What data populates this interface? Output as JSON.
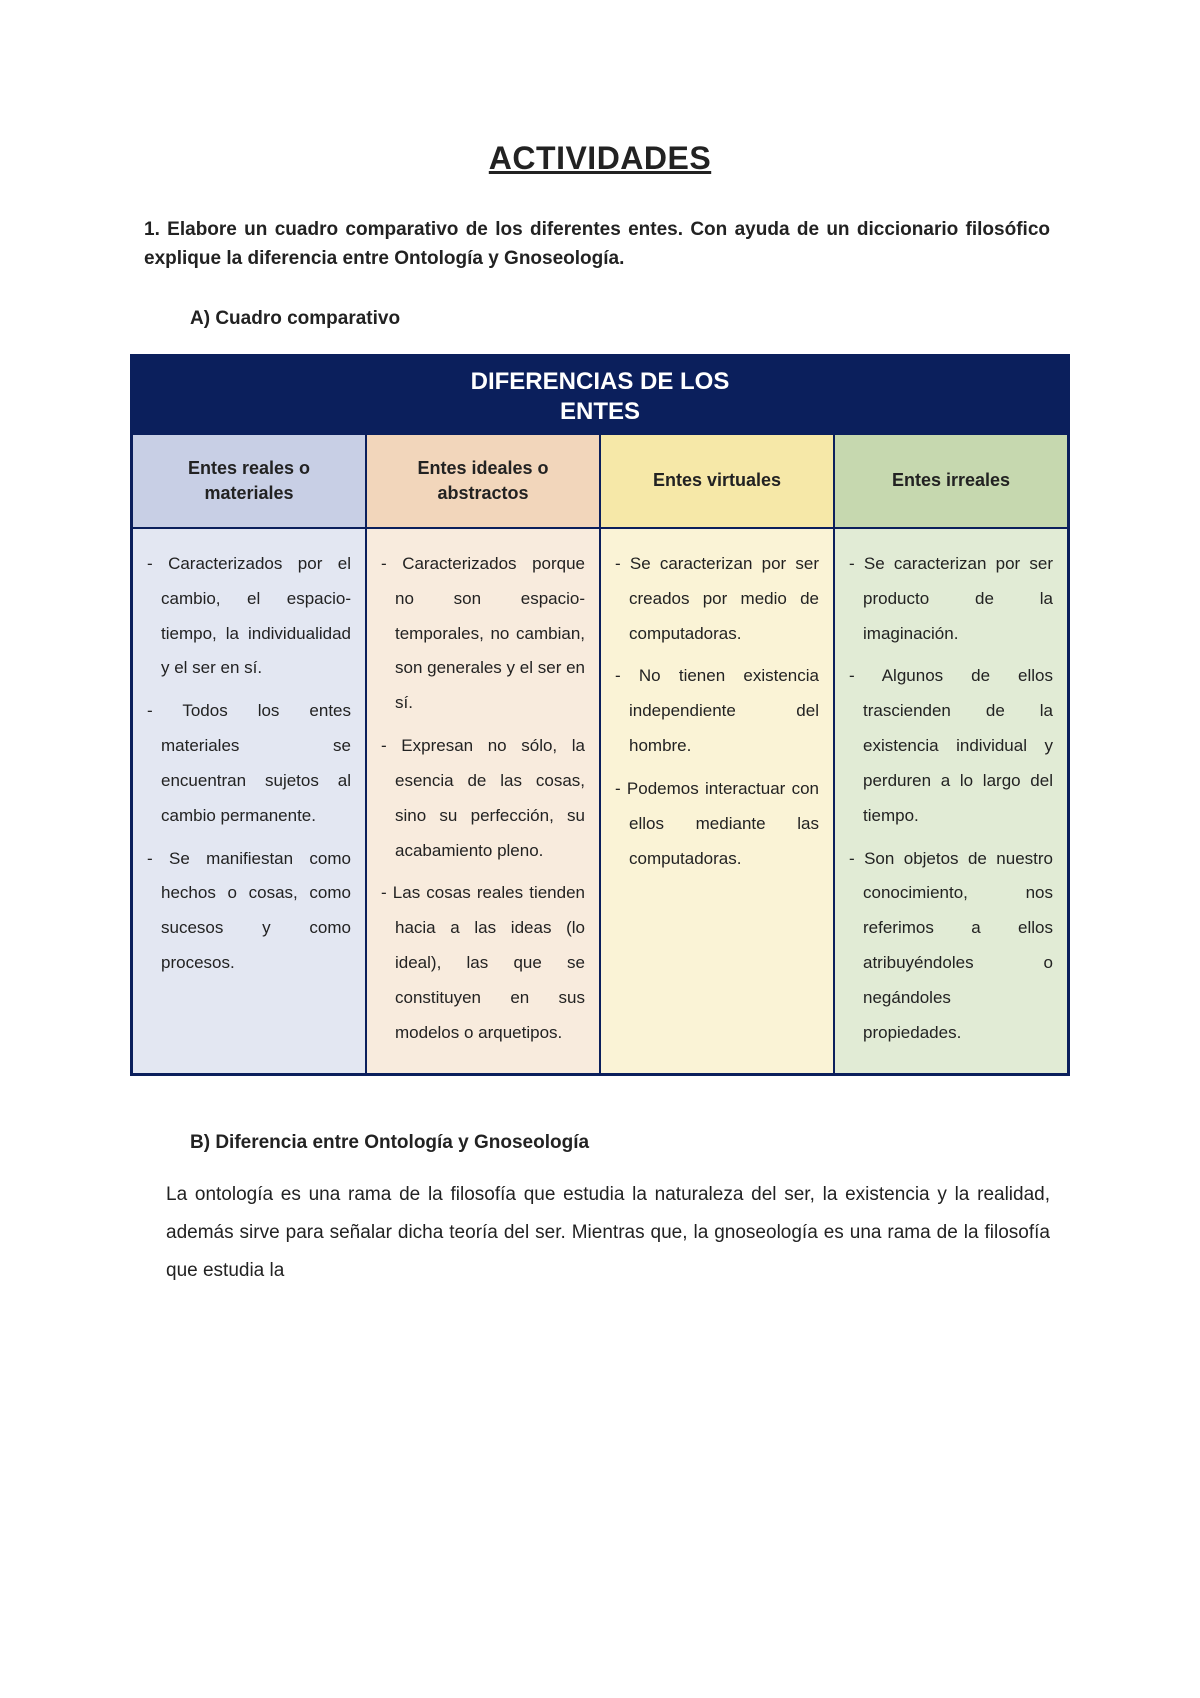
{
  "title": "ACTIVIDADES",
  "question1": "1. Elabore un cuadro comparativo de los diferentes entes. Con ayuda de un diccionario filosófico explique la diferencia entre Ontología y Gnoseología.",
  "sectionA": "A)  Cuadro comparativo",
  "table": {
    "title_line1": "DIFERENCIAS DE LOS",
    "title_line2": "ENTES",
    "colors": {
      "border": "#0b1f5c",
      "title_bg": "#0b1f5c",
      "title_fg": "#ffffff",
      "header_bgs": [
        "#c8cfe5",
        "#f2d6bb",
        "#f6e8a8",
        "#c6d8af"
      ],
      "body_bgs": [
        "#e3e7f2",
        "#f8ebdd",
        "#faf3d6",
        "#e1ebd5"
      ]
    },
    "columns": [
      {
        "header": "Entes reales o materiales",
        "bullets": [
          "Caracterizados por el cambio, el espacio-tiempo, la individualidad y el ser en sí.",
          "Todos los entes materiales se encuentran sujetos al cambio permanente.",
          "Se manifiestan como hechos o cosas, como sucesos y como procesos."
        ]
      },
      {
        "header": "Entes ideales o abstractos",
        "bullets": [
          "Caracterizados porque no son espacio- temporales, no cambian, son generales y el ser en sí.",
          "Expresan no sólo, la esencia de las cosas, sino su perfección, su acabamiento pleno.",
          "Las cosas reales tienden hacia a las ideas (lo ideal), las que se constituyen en sus modelos o arquetipos."
        ]
      },
      {
        "header": "Entes virtuales",
        "bullets": [
          "Se caracterizan por ser creados por medio de computadoras.",
          "No tienen existencia independiente del hombre.",
          "Podemos interactuar con ellos mediante las computadoras."
        ]
      },
      {
        "header": "Entes irreales",
        "bullets": [
          "Se caracterizan por ser producto de la imaginación.",
          "Algunos de ellos trascienden de la existencia individual y perduren a lo largo del tiempo.",
          "Son objetos de nuestro conocimiento, nos referimos a ellos atribuyéndoles o negándoles propiedades."
        ]
      }
    ]
  },
  "sectionB": "B)  Diferencia entre Ontología y Gnoseología",
  "paragraphB": "La ontología es una rama de la filosofía que estudia la naturaleza del ser, la existencia y la realidad, además sirve para señalar dicha teoría del ser. Mientras que, la gnoseología es una rama de la filosofía que estudia la"
}
